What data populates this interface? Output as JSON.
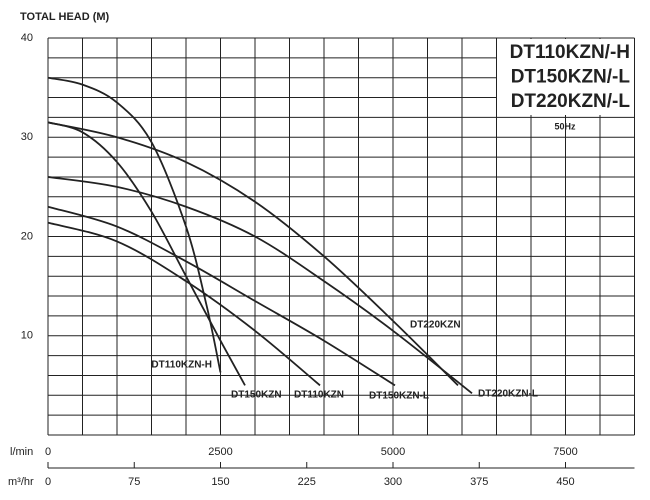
{
  "chart_data": {
    "type": "line",
    "ylabel": "TOTAL HEAD (M)",
    "models": [
      "DT110KZN/-H",
      "DT150KZN/-L",
      "DT220KZN/-L"
    ],
    "frequency": "50Hz",
    "xlabel": "l/min",
    "x2label": "m³/hr",
    "xlim": [
      0,
      8500
    ],
    "xticks": [
      0,
      2500,
      5000,
      7500
    ],
    "x2lim": [
      0,
      510
    ],
    "x2ticks": [
      0,
      75,
      150,
      225,
      300,
      375,
      450
    ],
    "ylim": [
      0,
      40
    ],
    "yticks": [
      10,
      20,
      30,
      40
    ],
    "grid": true,
    "grid_x": [
      0,
      500,
      1000,
      1500,
      2000,
      2500,
      3000,
      3500,
      4000,
      4500,
      5000,
      5500,
      6000,
      6500,
      7000,
      7500,
      8000,
      8500
    ],
    "grid_y": [
      0,
      2,
      4,
      6,
      8,
      10,
      12,
      14,
      16,
      18,
      20,
      22,
      24,
      26,
      28,
      30,
      32,
      34,
      36,
      38,
      40
    ],
    "series": [
      {
        "name": "DT110KZN-H",
        "color": "#222222",
        "x": [
          0,
          500,
          1000,
          1500,
          2000,
          2300,
          2500
        ],
        "values": [
          36,
          35.3,
          33.5,
          29.5,
          21,
          13,
          6.3
        ]
      },
      {
        "name": "DT150KZN",
        "color": "#222222",
        "x": [
          0,
          500,
          1000,
          1500,
          2000,
          2500,
          2855
        ],
        "values": [
          31.5,
          30.5,
          27.5,
          22.5,
          16,
          9.5,
          5
        ]
      },
      {
        "name": "DT110KZN",
        "color": "#222222",
        "x": [
          0,
          1000,
          2000,
          3000,
          3942
        ],
        "values": [
          21.4,
          19.5,
          15.5,
          10.5,
          5
        ]
      },
      {
        "name": "DT150KZN-L",
        "color": "#222222",
        "x": [
          0,
          1000,
          2000,
          3000,
          4000,
          5029
        ],
        "values": [
          23,
          21,
          17.5,
          13.5,
          9.5,
          5
        ]
      },
      {
        "name": "DT220KZN",
        "color": "#222222",
        "x": [
          0,
          1000,
          2000,
          3000,
          4000,
          5000,
          5942
        ],
        "values": [
          31.5,
          30,
          27.5,
          23.5,
          18,
          11.5,
          5
        ]
      },
      {
        "name": "DT220KZN-L",
        "color": "#222222",
        "x": [
          0,
          1000,
          2000,
          3000,
          4000,
          5000,
          6145
        ],
        "values": [
          26,
          25,
          23,
          20,
          15.5,
          10.5,
          4.2
        ]
      }
    ]
  }
}
